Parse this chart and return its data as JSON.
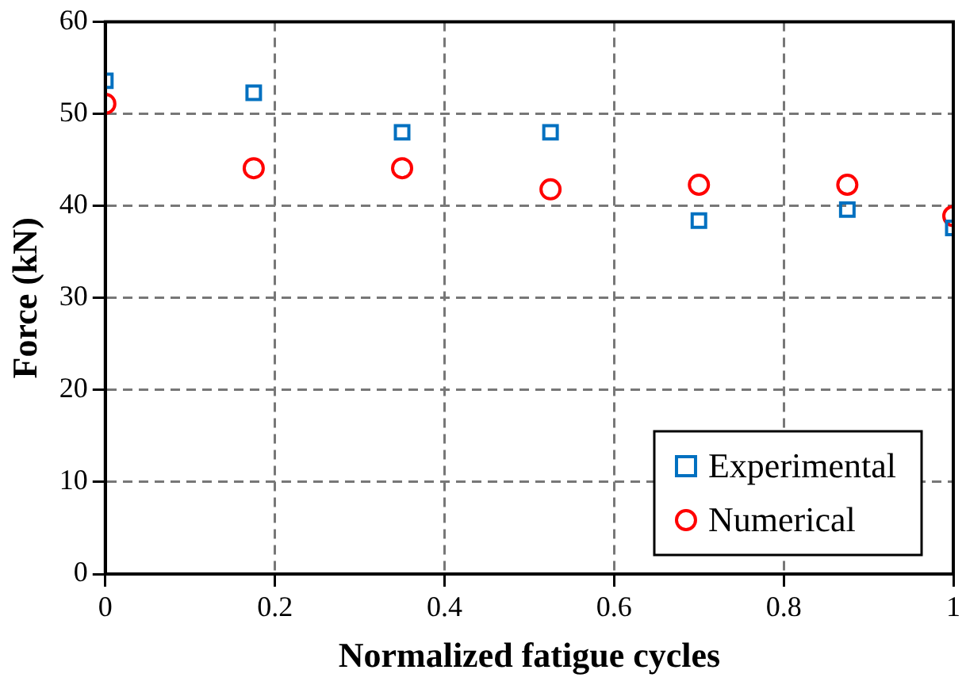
{
  "chart_data": {
    "type": "scatter",
    "xlabel": "Normalized fatigue cycles",
    "ylabel": "Force (kN)",
    "xlim": [
      0,
      1
    ],
    "xticks": [
      0,
      0.2,
      0.4,
      0.6,
      0.8,
      1
    ],
    "ylim": [
      0,
      60
    ],
    "yticks": [
      0,
      10,
      20,
      30,
      40,
      50,
      60
    ],
    "grid": true,
    "legend": "bottom right",
    "line_style": "dashed",
    "series": [
      {
        "name": "Experimental",
        "color": "#0070c0",
        "marker": "square",
        "x": [
          0,
          0.175,
          0.35,
          0.525,
          0.7,
          0.875,
          1
        ],
        "values": [
          53.6,
          52.3,
          48,
          48,
          38.4,
          39.6,
          37.6
        ]
      },
      {
        "name": "Numerical",
        "color": "#ff0000",
        "marker": "circle",
        "x": [
          0,
          0.175,
          0.35,
          0.525,
          0.7,
          0.875,
          1
        ],
        "values": [
          51.1,
          44.1,
          44.1,
          41.8,
          42.3,
          42.3,
          38.9
        ]
      }
    ]
  }
}
